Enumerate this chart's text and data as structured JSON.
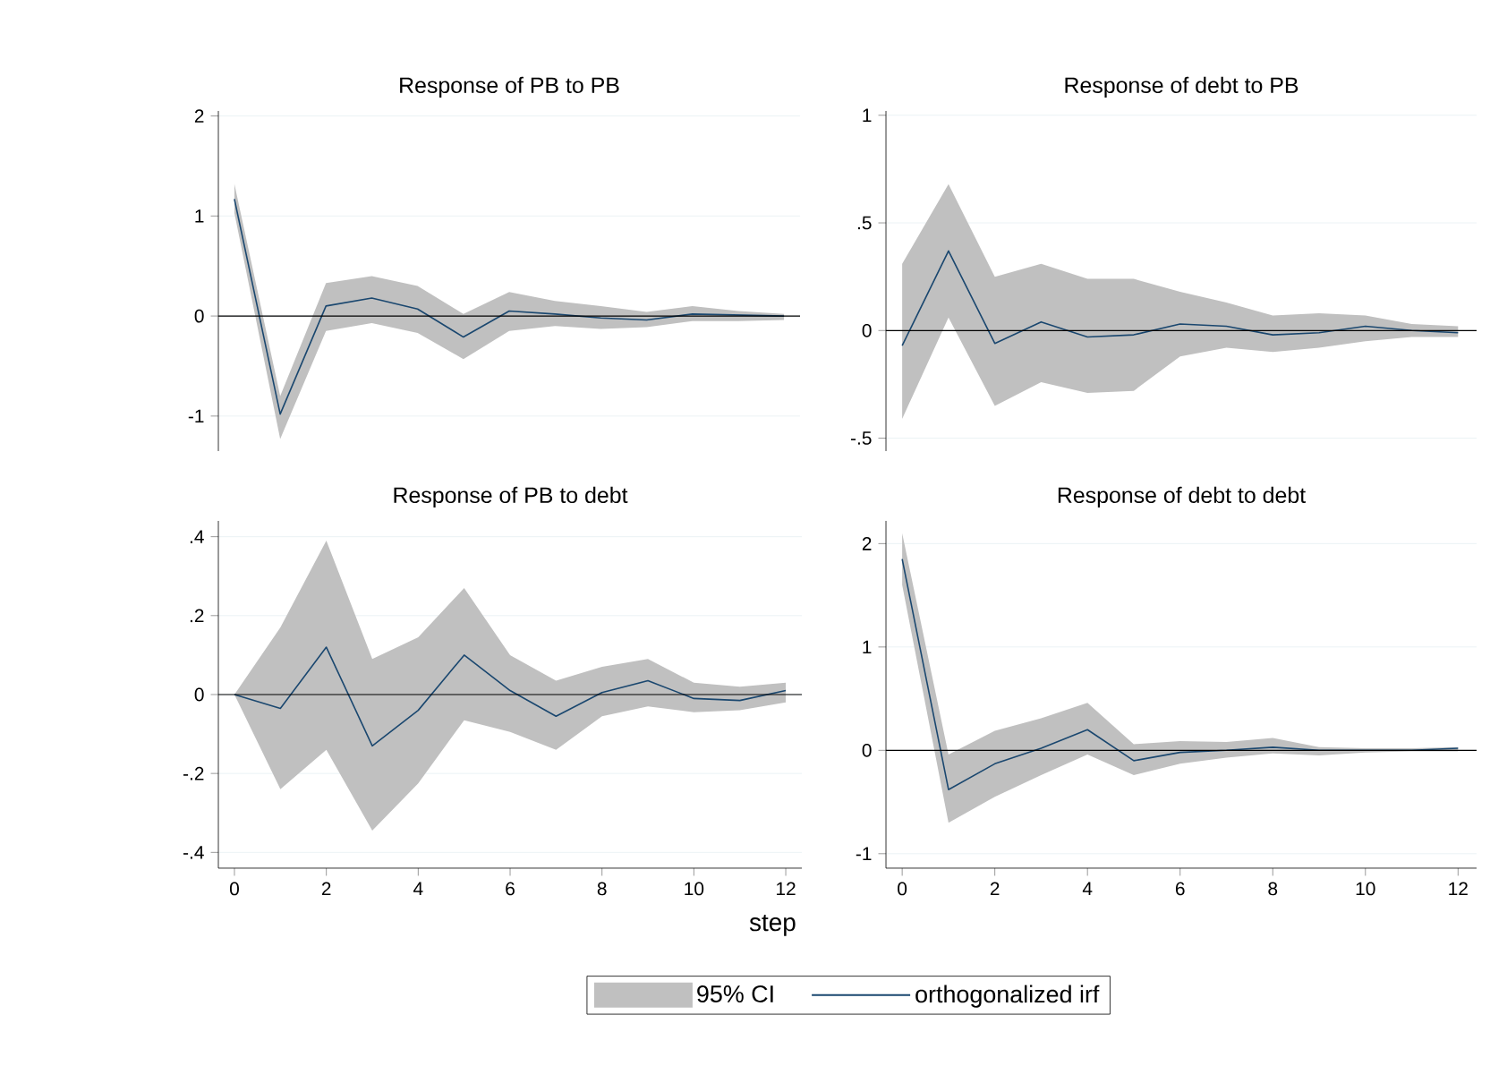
{
  "chart_data": [
    {
      "type": "line",
      "title": "Response of PB to PB",
      "x": [
        0,
        1,
        2,
        3,
        4,
        5,
        6,
        7,
        8,
        9,
        10,
        11,
        12
      ],
      "xlim": [
        -0.35,
        12.35
      ],
      "ylim": [
        -1.35,
        2.05
      ],
      "yticks": [
        -1,
        0,
        1,
        2
      ],
      "grid": "y",
      "tick_labels": "y",
      "ref_lines": [
        {
          "axis": "y",
          "value": 0,
          "color": "#000000"
        }
      ],
      "series": [
        {
          "color": "#1a476f",
          "values": [
            1.17,
            -0.98,
            0.1,
            0.18,
            0.07,
            -0.21,
            0.05,
            0.02,
            -0.02,
            -0.04,
            0.02,
            0.01,
            0.0
          ],
          "lower": [
            1.03,
            -1.23,
            -0.15,
            -0.07,
            -0.17,
            -0.43,
            -0.15,
            -0.1,
            -0.13,
            -0.11,
            -0.05,
            -0.05,
            -0.04
          ],
          "upper": [
            1.32,
            -0.8,
            0.33,
            0.4,
            0.3,
            0.02,
            0.24,
            0.15,
            0.1,
            0.04,
            0.1,
            0.05,
            0.02
          ]
        }
      ]
    },
    {
      "type": "line",
      "title": "Response of debt to PB",
      "x": [
        0,
        1,
        2,
        3,
        4,
        5,
        6,
        7,
        8,
        9,
        10,
        11,
        12
      ],
      "xlim": [
        -0.35,
        12.4
      ],
      "ylim": [
        -0.56,
        1.02
      ],
      "yticks": [
        {
          "value": -0.5,
          "label": "-.5"
        },
        0,
        {
          "value": 0.5,
          "label": ".5"
        },
        1
      ],
      "grid": "y",
      "tick_labels": "y",
      "ref_lines": [
        {
          "axis": "y",
          "value": 0,
          "color": "#000000"
        }
      ],
      "series": [
        {
          "color": "#1a476f",
          "values": [
            -0.07,
            0.37,
            -0.06,
            0.04,
            -0.03,
            -0.02,
            0.03,
            0.02,
            -0.02,
            -0.01,
            0.02,
            0.0,
            -0.01
          ],
          "lower": [
            -0.41,
            0.06,
            -0.35,
            -0.24,
            -0.29,
            -0.28,
            -0.12,
            -0.08,
            -0.1,
            -0.08,
            -0.05,
            -0.03,
            -0.03
          ],
          "upper": [
            0.31,
            0.68,
            0.25,
            0.31,
            0.24,
            0.24,
            0.18,
            0.13,
            0.07,
            0.08,
            0.07,
            0.03,
            0.02
          ]
        }
      ]
    },
    {
      "type": "line",
      "title": "Response of PB to debt",
      "xlabel": "step",
      "x": [
        0,
        1,
        2,
        3,
        4,
        5,
        6,
        7,
        8,
        9,
        10,
        11,
        12
      ],
      "xlim": [
        -0.35,
        12.35
      ],
      "xticks": [
        0,
        2,
        4,
        6,
        8,
        10,
        12
      ],
      "ylim": [
        -0.44,
        0.44
      ],
      "yticks": [
        {
          "value": -0.4,
          "label": "-.4"
        },
        {
          "value": -0.2,
          "label": "-.2"
        },
        0,
        {
          "value": 0.2,
          "label": ".2"
        },
        {
          "value": 0.4,
          "label": ".4"
        }
      ],
      "grid": "y",
      "legend": "bottom",
      "annotations": [
        "95% CI"
      ],
      "ref_lines": [
        {
          "axis": "y",
          "value": 0,
          "color": "#000000"
        }
      ],
      "series": [
        {
          "name": "orthogonalized irf",
          "color": "#1a476f",
          "values": [
            0.0,
            -0.035,
            0.12,
            -0.13,
            -0.04,
            0.1,
            0.01,
            -0.055,
            0.005,
            0.035,
            -0.01,
            -0.015,
            0.01
          ],
          "lower": [
            0.0,
            -0.24,
            -0.14,
            -0.345,
            -0.225,
            -0.065,
            -0.095,
            -0.14,
            -0.055,
            -0.03,
            -0.045,
            -0.04,
            -0.02
          ],
          "upper": [
            0.0,
            0.17,
            0.39,
            0.09,
            0.145,
            0.27,
            0.1,
            0.035,
            0.07,
            0.09,
            0.03,
            0.02,
            0.03
          ]
        }
      ]
    },
    {
      "type": "line",
      "title": "Response of debt to debt",
      "x": [
        0,
        1,
        2,
        3,
        4,
        5,
        6,
        7,
        8,
        9,
        10,
        11,
        12
      ],
      "xlim": [
        -0.35,
        12.4
      ],
      "xticks": [
        0,
        2,
        4,
        6,
        8,
        10,
        12
      ],
      "ylim": [
        -1.14,
        2.22
      ],
      "yticks": [
        -1,
        0,
        1,
        2
      ],
      "grid": "y",
      "ref_lines": [
        {
          "axis": "y",
          "value": 0,
          "color": "#000000"
        }
      ],
      "series": [
        {
          "color": "#1a476f",
          "values": [
            1.85,
            -0.38,
            -0.13,
            0.02,
            0.2,
            -0.1,
            -0.02,
            0.0,
            0.03,
            0.0,
            0.0,
            0.0,
            0.02
          ],
          "lower": [
            1.6,
            -0.7,
            -0.45,
            -0.24,
            -0.04,
            -0.24,
            -0.13,
            -0.07,
            -0.03,
            -0.05,
            -0.02,
            -0.01,
            -0.01
          ],
          "upper": [
            2.1,
            -0.04,
            0.19,
            0.31,
            0.46,
            0.06,
            0.09,
            0.08,
            0.12,
            0.03,
            0.02,
            0.02,
            0.03
          ]
        }
      ]
    }
  ]
}
